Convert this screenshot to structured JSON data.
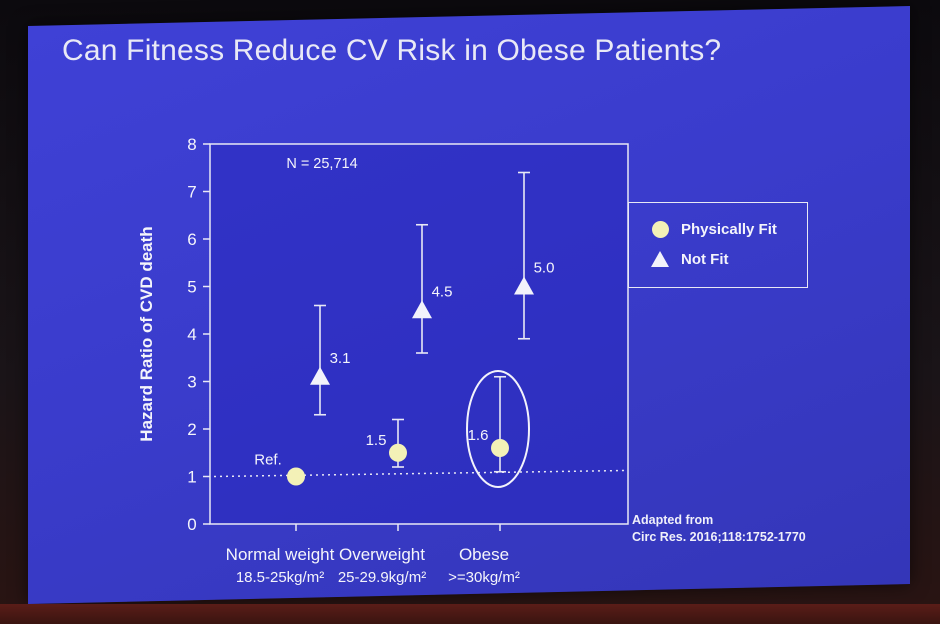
{
  "slide": {
    "title": "Can Fitness Reduce CV Risk in Obese Patients?"
  },
  "chart_data": {
    "type": "scatter",
    "ylabel": "Hazard Ratio of CVD death",
    "ylim": [
      0,
      8
    ],
    "yticks": [
      "0",
      "1",
      "2",
      "3",
      "4",
      "5",
      "6",
      "7",
      "8"
    ],
    "categories": [
      {
        "name": "Normal weight",
        "range": "18.5-25kg/m²"
      },
      {
        "name": "Overweight",
        "range": "25-29.9kg/m²"
      },
      {
        "name": "Obese",
        "range": ">=30kg/m²"
      }
    ],
    "annotation": "N = 25,714",
    "reference_line": 1.0,
    "series": [
      {
        "name": "Physically Fit",
        "marker": "circle",
        "color": "#f3f1b7",
        "points": [
          {
            "category": "Normal weight",
            "value": 1.0,
            "label": "Ref.",
            "err_low": null,
            "err_high": null
          },
          {
            "category": "Overweight",
            "value": 1.5,
            "label": "1.5",
            "err_low": 1.2,
            "err_high": 2.2
          },
          {
            "category": "Obese",
            "value": 1.6,
            "label": "1.6",
            "err_low": 1.1,
            "err_high": 3.1
          }
        ]
      },
      {
        "name": "Not Fit",
        "marker": "triangle",
        "color": "#f2f2fb",
        "points": [
          {
            "category": "Normal weight",
            "value": 3.1,
            "label": "3.1",
            "err_low": 2.3,
            "err_high": 4.6
          },
          {
            "category": "Overweight",
            "value": 4.5,
            "label": "4.5",
            "err_low": 3.6,
            "err_high": 6.3
          },
          {
            "category": "Obese",
            "value": 5.0,
            "label": "5.0",
            "err_low": 3.9,
            "err_high": 7.4
          }
        ]
      }
    ],
    "highlight": {
      "category": "Obese",
      "series": "Physically Fit"
    }
  },
  "legend": {
    "items": [
      "Physically Fit",
      "Not Fit"
    ]
  },
  "source": {
    "line1": "Adapted from",
    "line2": "Circ Res. 2016;118:1752-1770"
  }
}
